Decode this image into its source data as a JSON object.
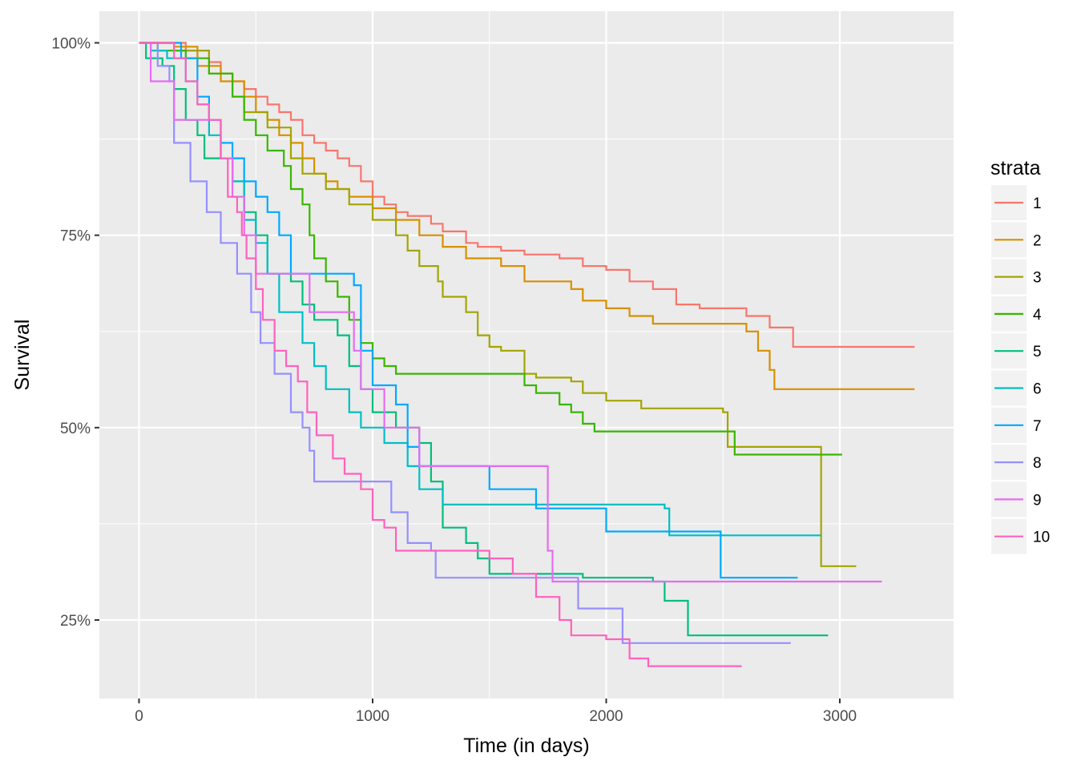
{
  "chart_data": {
    "type": "line",
    "subtype": "step (Kaplan-Meier survival curves)",
    "title": "",
    "xlabel": "Time (in days)",
    "ylabel": "Survival",
    "xlim": [
      -150,
      3500
    ],
    "ylim": [
      0.15,
      1.03
    ],
    "x_ticks": [
      0,
      1000,
      2000,
      3000
    ],
    "x_tick_labels": [
      "0",
      "1000",
      "2000",
      "3000"
    ],
    "y_ticks": [
      0.25,
      0.5,
      0.75,
      1.0
    ],
    "y_tick_labels": [
      "25%",
      "50%",
      "75%",
      "100%"
    ],
    "grid": true,
    "legend": {
      "title": "strata",
      "position": "right"
    },
    "series": [
      {
        "name": "1",
        "color": "#F8766D",
        "points": [
          [
            0,
            1.0
          ],
          [
            100,
            1.0
          ],
          [
            200,
            0.99
          ],
          [
            300,
            0.975
          ],
          [
            350,
            0.96
          ],
          [
            400,
            0.95
          ],
          [
            450,
            0.94
          ],
          [
            500,
            0.93
          ],
          [
            550,
            0.92
          ],
          [
            600,
            0.91
          ],
          [
            650,
            0.9
          ],
          [
            700,
            0.88
          ],
          [
            750,
            0.87
          ],
          [
            800,
            0.86
          ],
          [
            850,
            0.85
          ],
          [
            900,
            0.84
          ],
          [
            950,
            0.82
          ],
          [
            1000,
            0.8
          ],
          [
            1050,
            0.79
          ],
          [
            1100,
            0.78
          ],
          [
            1150,
            0.775
          ],
          [
            1250,
            0.765
          ],
          [
            1300,
            0.755
          ],
          [
            1400,
            0.74
          ],
          [
            1450,
            0.735
          ],
          [
            1550,
            0.73
          ],
          [
            1650,
            0.725
          ],
          [
            1800,
            0.72
          ],
          [
            1900,
            0.71
          ],
          [
            2000,
            0.705
          ],
          [
            2100,
            0.69
          ],
          [
            2200,
            0.68
          ],
          [
            2300,
            0.66
          ],
          [
            2400,
            0.655
          ],
          [
            2600,
            0.645
          ],
          [
            2700,
            0.63
          ],
          [
            2800,
            0.605
          ],
          [
            3320,
            0.605
          ]
        ]
      },
      {
        "name": "2",
        "color": "#D89000",
        "points": [
          [
            0,
            1.0
          ],
          [
            150,
            0.995
          ],
          [
            250,
            0.97
          ],
          [
            350,
            0.95
          ],
          [
            450,
            0.93
          ],
          [
            500,
            0.91
          ],
          [
            550,
            0.9
          ],
          [
            600,
            0.88
          ],
          [
            650,
            0.87
          ],
          [
            700,
            0.85
          ],
          [
            750,
            0.83
          ],
          [
            800,
            0.82
          ],
          [
            850,
            0.81
          ],
          [
            900,
            0.8
          ],
          [
            1000,
            0.785
          ],
          [
            1100,
            0.77
          ],
          [
            1200,
            0.75
          ],
          [
            1300,
            0.735
          ],
          [
            1400,
            0.72
          ],
          [
            1550,
            0.71
          ],
          [
            1650,
            0.69
          ],
          [
            1850,
            0.68
          ],
          [
            1900,
            0.665
          ],
          [
            2000,
            0.655
          ],
          [
            2100,
            0.645
          ],
          [
            2200,
            0.635
          ],
          [
            2600,
            0.625
          ],
          [
            2650,
            0.6
          ],
          [
            2700,
            0.575
          ],
          [
            2720,
            0.55
          ],
          [
            3320,
            0.55
          ]
        ]
      },
      {
        "name": "3",
        "color": "#A3A500",
        "points": [
          [
            0,
            1.0
          ],
          [
            150,
            0.99
          ],
          [
            300,
            0.96
          ],
          [
            400,
            0.93
          ],
          [
            450,
            0.91
          ],
          [
            550,
            0.89
          ],
          [
            650,
            0.85
          ],
          [
            700,
            0.83
          ],
          [
            800,
            0.81
          ],
          [
            900,
            0.79
          ],
          [
            1000,
            0.77
          ],
          [
            1100,
            0.75
          ],
          [
            1150,
            0.73
          ],
          [
            1200,
            0.71
          ],
          [
            1280,
            0.69
          ],
          [
            1300,
            0.67
          ],
          [
            1400,
            0.65
          ],
          [
            1450,
            0.62
          ],
          [
            1500,
            0.605
          ],
          [
            1550,
            0.6
          ],
          [
            1650,
            0.57
          ],
          [
            1700,
            0.565
          ],
          [
            1850,
            0.56
          ],
          [
            1900,
            0.545
          ],
          [
            2000,
            0.535
          ],
          [
            2150,
            0.525
          ],
          [
            2500,
            0.52
          ],
          [
            2520,
            0.475
          ],
          [
            2900,
            0.475
          ],
          [
            2920,
            0.32
          ],
          [
            3070,
            0.32
          ]
        ]
      },
      {
        "name": "4",
        "color": "#39B600",
        "points": [
          [
            0,
            1.0
          ],
          [
            80,
            0.99
          ],
          [
            200,
            0.98
          ],
          [
            300,
            0.96
          ],
          [
            400,
            0.93
          ],
          [
            450,
            0.9
          ],
          [
            500,
            0.88
          ],
          [
            550,
            0.86
          ],
          [
            620,
            0.84
          ],
          [
            650,
            0.81
          ],
          [
            700,
            0.79
          ],
          [
            730,
            0.75
          ],
          [
            750,
            0.72
          ],
          [
            800,
            0.69
          ],
          [
            850,
            0.67
          ],
          [
            900,
            0.64
          ],
          [
            950,
            0.61
          ],
          [
            1000,
            0.59
          ],
          [
            1050,
            0.58
          ],
          [
            1100,
            0.57
          ],
          [
            1600,
            0.57
          ],
          [
            1650,
            0.555
          ],
          [
            1700,
            0.545
          ],
          [
            1800,
            0.53
          ],
          [
            1850,
            0.52
          ],
          [
            1900,
            0.505
          ],
          [
            1950,
            0.495
          ],
          [
            2500,
            0.495
          ],
          [
            2550,
            0.465
          ],
          [
            3010,
            0.465
          ]
        ]
      },
      {
        "name": "5",
        "color": "#00BF7D",
        "points": [
          [
            0,
            1.0
          ],
          [
            30,
            0.98
          ],
          [
            100,
            0.97
          ],
          [
            150,
            0.94
          ],
          [
            200,
            0.9
          ],
          [
            250,
            0.88
          ],
          [
            280,
            0.85
          ],
          [
            400,
            0.82
          ],
          [
            450,
            0.78
          ],
          [
            500,
            0.75
          ],
          [
            550,
            0.7
          ],
          [
            650,
            0.69
          ],
          [
            700,
            0.66
          ],
          [
            750,
            0.64
          ],
          [
            850,
            0.62
          ],
          [
            900,
            0.58
          ],
          [
            950,
            0.55
          ],
          [
            1000,
            0.52
          ],
          [
            1100,
            0.5
          ],
          [
            1200,
            0.48
          ],
          [
            1250,
            0.43
          ],
          [
            1300,
            0.37
          ],
          [
            1400,
            0.35
          ],
          [
            1450,
            0.33
          ],
          [
            1500,
            0.31
          ],
          [
            1900,
            0.305
          ],
          [
            2200,
            0.3
          ],
          [
            2250,
            0.275
          ],
          [
            2350,
            0.23
          ],
          [
            2950,
            0.23
          ]
        ]
      },
      {
        "name": "6",
        "color": "#00BFC4",
        "points": [
          [
            0,
            1.0
          ],
          [
            50,
            0.99
          ],
          [
            120,
            0.98
          ],
          [
            200,
            0.95
          ],
          [
            250,
            0.92
          ],
          [
            300,
            0.88
          ],
          [
            350,
            0.85
          ],
          [
            400,
            0.82
          ],
          [
            450,
            0.77
          ],
          [
            500,
            0.74
          ],
          [
            550,
            0.7
          ],
          [
            600,
            0.65
          ],
          [
            700,
            0.61
          ],
          [
            750,
            0.58
          ],
          [
            800,
            0.55
          ],
          [
            900,
            0.52
          ],
          [
            950,
            0.5
          ],
          [
            1050,
            0.48
          ],
          [
            1150,
            0.45
          ],
          [
            1200,
            0.42
          ],
          [
            1300,
            0.4
          ],
          [
            1900,
            0.4
          ],
          [
            2250,
            0.395
          ],
          [
            2270,
            0.36
          ],
          [
            2920,
            0.36
          ]
        ]
      },
      {
        "name": "7",
        "color": "#00A9FF",
        "points": [
          [
            0,
            1.0
          ],
          [
            150,
            1.0
          ],
          [
            180,
            0.98
          ],
          [
            250,
            0.93
          ],
          [
            300,
            0.9
          ],
          [
            350,
            0.87
          ],
          [
            400,
            0.85
          ],
          [
            450,
            0.82
          ],
          [
            500,
            0.8
          ],
          [
            550,
            0.78
          ],
          [
            600,
            0.75
          ],
          [
            650,
            0.7
          ],
          [
            920,
            0.685
          ],
          [
            950,
            0.6
          ],
          [
            1000,
            0.555
          ],
          [
            1100,
            0.53
          ],
          [
            1150,
            0.475
          ],
          [
            1200,
            0.45
          ],
          [
            1500,
            0.42
          ],
          [
            1700,
            0.395
          ],
          [
            2000,
            0.365
          ],
          [
            2480,
            0.365
          ],
          [
            2490,
            0.305
          ],
          [
            2820,
            0.305
          ]
        ]
      },
      {
        "name": "8",
        "color": "#9590FF",
        "points": [
          [
            0,
            1.0
          ],
          [
            80,
            0.97
          ],
          [
            130,
            0.95
          ],
          [
            150,
            0.87
          ],
          [
            220,
            0.82
          ],
          [
            290,
            0.78
          ],
          [
            350,
            0.74
          ],
          [
            420,
            0.7
          ],
          [
            480,
            0.65
          ],
          [
            520,
            0.61
          ],
          [
            580,
            0.57
          ],
          [
            650,
            0.52
          ],
          [
            700,
            0.5
          ],
          [
            730,
            0.47
          ],
          [
            750,
            0.43
          ],
          [
            1080,
            0.39
          ],
          [
            1150,
            0.35
          ],
          [
            1250,
            0.34
          ],
          [
            1270,
            0.305
          ],
          [
            1800,
            0.305
          ],
          [
            1880,
            0.265
          ],
          [
            2030,
            0.265
          ],
          [
            2070,
            0.22
          ],
          [
            2790,
            0.22
          ]
        ]
      },
      {
        "name": "9",
        "color": "#E76BF3",
        "points": [
          [
            0,
            1.0
          ],
          [
            50,
            0.95
          ],
          [
            150,
            0.9
          ],
          [
            200,
            0.9
          ],
          [
            300,
            0.9
          ],
          [
            350,
            0.85
          ],
          [
            400,
            0.8
          ],
          [
            450,
            0.75
          ],
          [
            500,
            0.7
          ],
          [
            700,
            0.7
          ],
          [
            730,
            0.65
          ],
          [
            900,
            0.65
          ],
          [
            920,
            0.6
          ],
          [
            950,
            0.55
          ],
          [
            1050,
            0.5
          ],
          [
            1100,
            0.5
          ],
          [
            1200,
            0.45
          ],
          [
            1700,
            0.45
          ],
          [
            1750,
            0.4
          ],
          [
            1750,
            0.34
          ],
          [
            1770,
            0.3
          ],
          [
            3180,
            0.3
          ]
        ]
      },
      {
        "name": "10",
        "color": "#FF62BC",
        "points": [
          [
            0,
            1.0
          ],
          [
            100,
            1.0
          ],
          [
            150,
            0.98
          ],
          [
            200,
            0.95
          ],
          [
            250,
            0.92
          ],
          [
            300,
            0.9
          ],
          [
            350,
            0.85
          ],
          [
            380,
            0.8
          ],
          [
            420,
            0.78
          ],
          [
            440,
            0.75
          ],
          [
            460,
            0.72
          ],
          [
            500,
            0.68
          ],
          [
            530,
            0.64
          ],
          [
            580,
            0.6
          ],
          [
            630,
            0.58
          ],
          [
            680,
            0.56
          ],
          [
            720,
            0.52
          ],
          [
            760,
            0.49
          ],
          [
            830,
            0.46
          ],
          [
            880,
            0.44
          ],
          [
            950,
            0.42
          ],
          [
            1000,
            0.38
          ],
          [
            1050,
            0.37
          ],
          [
            1100,
            0.34
          ],
          [
            1500,
            0.33
          ],
          [
            1600,
            0.31
          ],
          [
            1700,
            0.28
          ],
          [
            1800,
            0.25
          ],
          [
            1850,
            0.23
          ],
          [
            2000,
            0.225
          ],
          [
            2100,
            0.2
          ],
          [
            2180,
            0.19
          ],
          [
            2580,
            0.19
          ]
        ]
      }
    ]
  }
}
